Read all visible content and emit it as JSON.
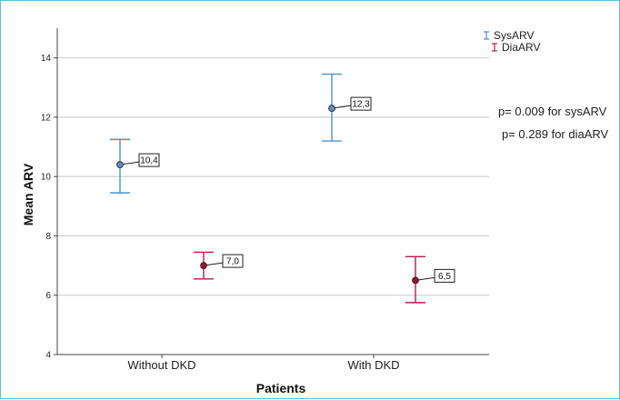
{
  "chart_data": {
    "type": "scatter",
    "xlabel": "Patients",
    "ylabel": "Mean ARV",
    "categories": [
      "Without DKD",
      "With DKD"
    ],
    "ylim": [
      4,
      15
    ],
    "yticks": [
      "4",
      "6",
      "8",
      "10",
      "12",
      "14"
    ],
    "grid": "horizontal",
    "legend_position": "top-right",
    "series": [
      {
        "name": "SysARV",
        "color": "#4a90d9",
        "marker_color": "#5b8fc9",
        "values": [
          10.4,
          12.3
        ],
        "labels": [
          "10,4",
          "12,3"
        ],
        "error_low": [
          9.45,
          11.2
        ],
        "error_high": [
          11.25,
          13.45
        ]
      },
      {
        "name": "DiaARV",
        "color": "#c0174a",
        "marker_color": "#a3102f",
        "values": [
          7.0,
          6.5
        ],
        "labels": [
          "7,0",
          "6,5"
        ],
        "error_low": [
          6.55,
          5.75
        ],
        "error_high": [
          7.45,
          7.3
        ]
      }
    ],
    "annotations": [
      "p= 0.009 for sysARV",
      "p= 0.289 for diaARV"
    ]
  }
}
